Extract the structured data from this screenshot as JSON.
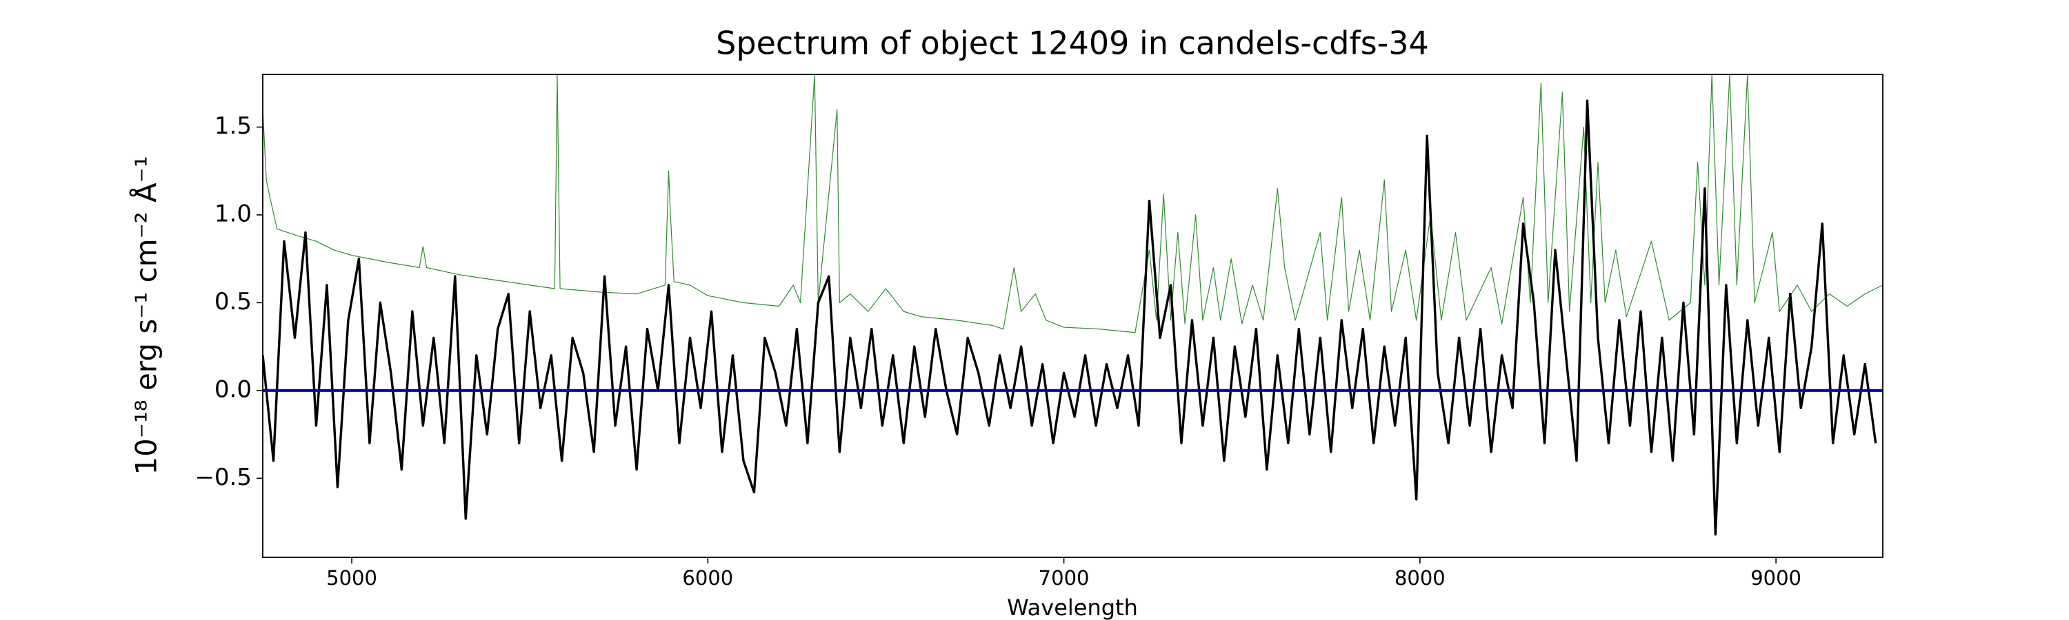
{
  "chart_data": {
    "type": "line",
    "title": "Spectrum of object 12409 in candels-cdfs-34",
    "xlabel": "Wavelength",
    "ylabel": "10⁻¹⁸ erg s⁻¹ cm⁻² Å⁻¹",
    "xlim": [
      4750,
      9300
    ],
    "ylim": [
      -0.95,
      1.8
    ],
    "xticks": [
      5000,
      6000,
      7000,
      8000,
      9000
    ],
    "yticks": [
      {
        "value": -0.5,
        "label": "−0.5"
      },
      {
        "value": 0,
        "label": "0.0"
      },
      0.5,
      {
        "value": 1.0,
        "label": "1.0"
      },
      1.5
    ],
    "grid": false,
    "series": [
      {
        "color": "#2e8b2e",
        "width": 1.2,
        "x": [
          4750,
          4760,
          4770,
          4790,
          4850,
          4900,
          4950,
          5000,
          5100,
          5190,
          5200,
          5210,
          5300,
          5400,
          5500,
          5570,
          5577,
          5585,
          5700,
          5800,
          5880,
          5890,
          5895,
          5905,
          5950,
          6000,
          6100,
          6200,
          6240,
          6260,
          6300,
          6310,
          6363,
          6370,
          6400,
          6450,
          6500,
          6550,
          6600,
          6700,
          6800,
          6830,
          6860,
          6880,
          6920,
          6950,
          7000,
          7100,
          7200,
          7240,
          7260,
          7280,
          7300,
          7320,
          7340,
          7370,
          7390,
          7420,
          7440,
          7470,
          7500,
          7530,
          7560,
          7600,
          7620,
          7650,
          7720,
          7740,
          7780,
          7800,
          7830,
          7860,
          7900,
          7920,
          7960,
          7990,
          8030,
          8060,
          8100,
          8130,
          8200,
          8230,
          8290,
          8310,
          8340,
          8360,
          8400,
          8420,
          8460,
          8480,
          8500,
          8520,
          8550,
          8580,
          8650,
          8700,
          8760,
          8780,
          8800,
          8820,
          8840,
          8870,
          8890,
          8920,
          8940,
          8990,
          9010,
          9060,
          9100,
          9150,
          9200,
          9250,
          9300
        ],
        "values": [
          1.6,
          1.2,
          1.1,
          0.92,
          0.88,
          0.85,
          0.8,
          0.77,
          0.73,
          0.7,
          0.82,
          0.7,
          0.66,
          0.63,
          0.6,
          0.58,
          1.8,
          0.58,
          0.56,
          0.55,
          0.6,
          1.25,
          1.0,
          0.62,
          0.6,
          0.54,
          0.5,
          0.48,
          0.6,
          0.5,
          1.8,
          0.5,
          1.6,
          0.5,
          0.55,
          0.45,
          0.58,
          0.45,
          0.42,
          0.4,
          0.37,
          0.35,
          0.7,
          0.45,
          0.55,
          0.4,
          0.36,
          0.35,
          0.33,
          0.8,
          0.4,
          1.12,
          0.4,
          0.9,
          0.38,
          1.0,
          0.4,
          0.7,
          0.4,
          0.75,
          0.38,
          0.6,
          0.4,
          1.15,
          0.7,
          0.4,
          0.9,
          0.4,
          1.1,
          0.45,
          0.8,
          0.4,
          1.2,
          0.45,
          0.8,
          0.4,
          1.0,
          0.4,
          0.9,
          0.4,
          0.7,
          0.38,
          1.1,
          0.5,
          1.75,
          0.5,
          1.7,
          0.45,
          1.5,
          0.5,
          1.3,
          0.5,
          0.8,
          0.42,
          0.85,
          0.4,
          0.5,
          1.3,
          0.6,
          1.8,
          0.6,
          1.8,
          0.6,
          1.8,
          0.5,
          0.9,
          0.45,
          0.6,
          0.45,
          0.55,
          0.48,
          0.55,
          0.6
        ]
      },
      {
        "color": "#000000",
        "width": 3.4,
        "x": [
          4750,
          4780,
          4810,
          4840,
          4870,
          4900,
          4930,
          4960,
          4990,
          5020,
          5050,
          5080,
          5110,
          5140,
          5170,
          5200,
          5230,
          5260,
          5290,
          5320,
          5350,
          5380,
          5410,
          5440,
          5470,
          5500,
          5530,
          5560,
          5590,
          5620,
          5650,
          5680,
          5710,
          5740,
          5770,
          5800,
          5830,
          5860,
          5890,
          5920,
          5950,
          5980,
          6010,
          6040,
          6070,
          6100,
          6130,
          6160,
          6190,
          6220,
          6250,
          6280,
          6310,
          6340,
          6370,
          6400,
          6430,
          6460,
          6490,
          6520,
          6550,
          6580,
          6610,
          6640,
          6670,
          6700,
          6730,
          6760,
          6790,
          6820,
          6850,
          6880,
          6910,
          6940,
          6970,
          7000,
          7030,
          7060,
          7090,
          7120,
          7150,
          7180,
          7210,
          7240,
          7270,
          7300,
          7330,
          7360,
          7390,
          7420,
          7450,
          7480,
          7510,
          7540,
          7570,
          7600,
          7630,
          7660,
          7690,
          7720,
          7750,
          7780,
          7810,
          7840,
          7870,
          7900,
          7930,
          7960,
          7990,
          8020,
          8050,
          8080,
          8110,
          8140,
          8170,
          8200,
          8230,
          8260,
          8290,
          8320,
          8350,
          8380,
          8410,
          8440,
          8470,
          8500,
          8530,
          8560,
          8590,
          8620,
          8650,
          8680,
          8710,
          8740,
          8770,
          8800,
          8830,
          8860,
          8890,
          8920,
          8950,
          8980,
          9010,
          9040,
          9070,
          9100,
          9130,
          9160,
          9190,
          9220,
          9250,
          9280
        ],
        "values": [
          0.2,
          -0.4,
          0.85,
          0.3,
          0.9,
          -0.2,
          0.6,
          -0.55,
          0.4,
          0.75,
          -0.3,
          0.5,
          0.1,
          -0.45,
          0.45,
          -0.2,
          0.3,
          -0.3,
          0.65,
          -0.73,
          0.2,
          -0.25,
          0.35,
          0.55,
          -0.3,
          0.45,
          -0.1,
          0.2,
          -0.4,
          0.3,
          0.1,
          -0.35,
          0.65,
          -0.2,
          0.25,
          -0.45,
          0.35,
          0.0,
          0.6,
          -0.3,
          0.3,
          -0.1,
          0.45,
          -0.35,
          0.2,
          -0.4,
          -0.58,
          0.3,
          0.1,
          -0.2,
          0.35,
          -0.3,
          0.5,
          0.65,
          -0.35,
          0.3,
          -0.1,
          0.35,
          -0.2,
          0.2,
          -0.3,
          0.25,
          -0.15,
          0.35,
          0.0,
          -0.25,
          0.3,
          0.1,
          -0.2,
          0.2,
          -0.1,
          0.25,
          -0.2,
          0.15,
          -0.3,
          0.1,
          -0.15,
          0.2,
          -0.2,
          0.15,
          -0.1,
          0.2,
          -0.2,
          1.08,
          0.3,
          0.6,
          -0.3,
          0.4,
          -0.2,
          0.3,
          -0.4,
          0.25,
          -0.15,
          0.35,
          -0.45,
          0.2,
          -0.3,
          0.35,
          -0.25,
          0.3,
          -0.35,
          0.4,
          -0.1,
          0.35,
          -0.3,
          0.25,
          -0.2,
          0.3,
          -0.62,
          1.45,
          0.1,
          -0.3,
          0.3,
          -0.2,
          0.35,
          -0.35,
          0.2,
          -0.1,
          0.95,
          0.5,
          -0.3,
          0.8,
          0.2,
          -0.4,
          1.65,
          0.3,
          -0.3,
          0.4,
          -0.2,
          0.45,
          -0.35,
          0.3,
          -0.4,
          0.5,
          -0.25,
          1.15,
          -0.82,
          0.6,
          -0.3,
          0.4,
          -0.2,
          0.3,
          -0.35,
          0.55,
          -0.1,
          0.25,
          0.95,
          -0.3,
          0.2,
          -0.25,
          0.15,
          -0.3
        ]
      },
      {
        "color": "#0000cc",
        "width": 4,
        "x": [
          4750,
          9300
        ],
        "values": [
          0,
          0
        ]
      }
    ]
  }
}
